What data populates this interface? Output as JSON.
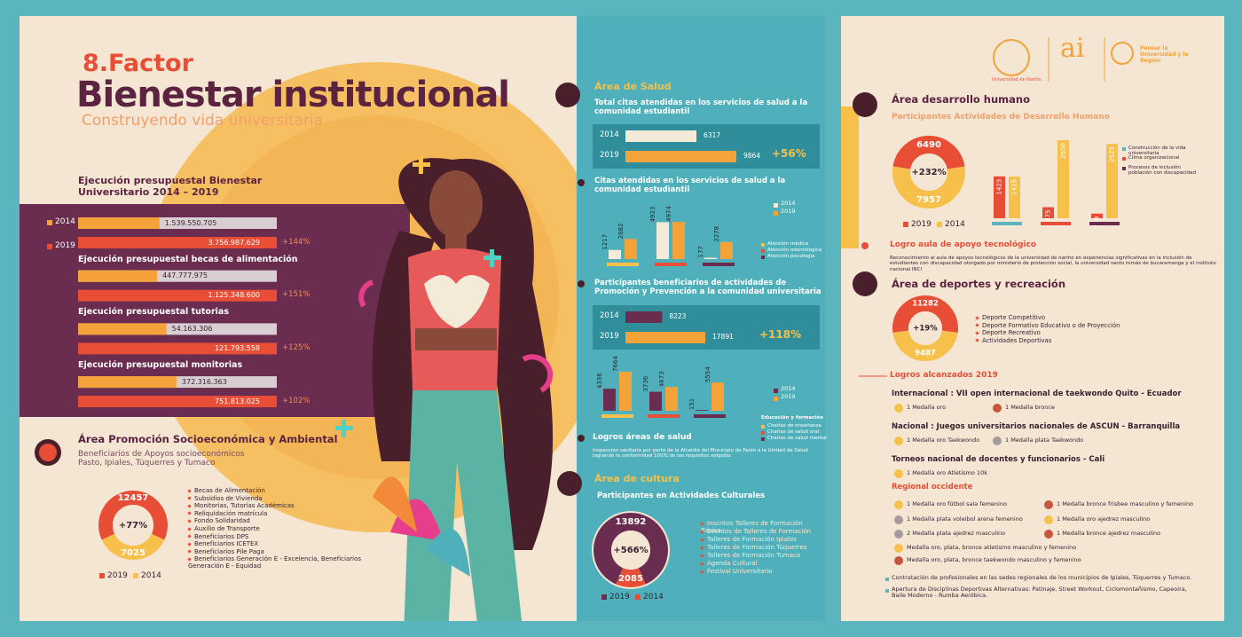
{
  "left": {
    "factor": "8.Factor",
    "title": "Bienestar institucional",
    "subtitle": "Construyendo vida universitaria",
    "budget": {
      "title": "Ejecución presupuestal Bienestar Universitario 2014 – 2019",
      "years": [
        "2014",
        "2019"
      ],
      "colors": [
        "#f4a23a",
        "#e84e36"
      ],
      "groups": [
        {
          "values": [
            1539550705,
            3756987629
          ],
          "value_labels": [
            "1.539.550.705",
            "3.756.987.629"
          ],
          "change": "+144%"
        },
        {
          "title": "Ejecución presupuestal becas de alimentación",
          "values": [
            447777975,
            1125348600
          ],
          "value_labels": [
            "447.777.975",
            "1.125.348.600"
          ],
          "change": "+151%"
        },
        {
          "title": "Ejecución presupuestal tutorias",
          "values": [
            54163306,
            121793558
          ],
          "value_labels": [
            "54.163.306",
            "121.793.558"
          ],
          "change": "+125%"
        },
        {
          "title": "Ejecución presupuestal monitorias",
          "values": [
            372316363,
            751813025
          ],
          "value_labels": [
            "372.316.363",
            "751.813.025"
          ],
          "change": "+102%"
        }
      ]
    },
    "socio": {
      "title": "Área Promoción Socioeconómica y Ambiental",
      "subtitle": "Beneficiarios de Apoyos socioeconómicos  Pasto, Ipiales, Túquerres y Tumaco",
      "donut": {
        "values": [
          12457,
          7025
        ],
        "colors": [
          "#e84e36",
          "#f6c04a"
        ],
        "change": "+77%",
        "legend": [
          "2019",
          "2014"
        ]
      },
      "items": [
        "Becas de Alimentación",
        "Subsidios de Vivienda",
        "Monitorias, Tutorías Académicas",
        "Reliquidación matrícula",
        "Fondo Solidaridad",
        "Auxilio de Transporte",
        "Beneficiarios DPS",
        "Beneficiarios ICETEX",
        "Beneficiarios Pile Paga",
        "Beneficiarios Generación E - Excelencia, Beneficiarios Generación E - Equidad"
      ]
    }
  },
  "salud": {
    "title": "Área de Salud",
    "total": {
      "title": "Total  citas atendidas en los servicios de salud a la comunidad estudiantil",
      "years": [
        "2014",
        "2019"
      ],
      "colors": [
        "#f4ead8",
        "#f4a23a"
      ],
      "values": [
        6317,
        9864
      ],
      "change": "+56%"
    },
    "citas": {
      "title": "Citas atendidas en los servicios de salud a la comunidad estudiantil",
      "categories": [
        "Atención médica",
        "Atención odontológica",
        "Atención psicología"
      ],
      "category_colors": [
        "#f6c04a",
        "#e84e36",
        "#6b2d4f"
      ],
      "series": [
        {
          "name": "2014",
          "color": "#f4ead8",
          "values": [
            1217,
            4923,
            177
          ]
        },
        {
          "name": "2019",
          "color": "#f4a23a",
          "values": [
            2682,
            4974,
            2278
          ]
        }
      ]
    },
    "promo": {
      "title": "Participantes beneficiarios de actividades de Promoción y Prevención a la comunidad universitaria",
      "years": [
        "2014",
        "2019"
      ],
      "colors": [
        "#6b2d4f",
        "#f4a23a"
      ],
      "values": [
        8223,
        17891
      ],
      "change": "+118%"
    },
    "promo_detail": {
      "legend_title": "Educación y formación",
      "categories": [
        "Charlas de enseñanza",
        "Charlas de salud oral",
        "Charlas de salud mental"
      ],
      "category_colors": [
        "#f6c04a",
        "#e84e36",
        "#6b2d4f"
      ],
      "series": [
        {
          "name": "2014",
          "color": "#6b2d4f",
          "values": [
            4336,
            3736,
            151
          ]
        },
        {
          "name": "2019",
          "color": "#f4a23a",
          "values": [
            7664,
            4673,
            5554
          ]
        }
      ]
    },
    "logros": {
      "title": "Logros áreas de salud",
      "text": "Inspección sanitaria por parte de la Alcaldía del Municipio de Pasto a la Unidad de Salud logrando la conformidad 100% de los requisitos exigidos"
    }
  },
  "cultura": {
    "title": "Área de cultura",
    "subtitle": "Participantes en Actividades Culturales",
    "donut": {
      "values": [
        13892,
        2085
      ],
      "colors": [
        "#6b2d4f",
        "#e84e36"
      ],
      "change": "+566%",
      "legend": [
        "2019",
        "2014"
      ]
    },
    "items": [
      "Inscritos Talleres de Formación Básica",
      "Eventos de Talleres de Formación",
      "Talleres de Formación Ipiales",
      "Talleres de Formación Túquerres",
      "Talleres de Formación Tumaco",
      "Agenda Cultural",
      "Festival Universitario"
    ]
  },
  "right": {
    "logos": [
      "Universidad de Nariño",
      "ai",
      "Pensar la Universidad y la Región"
    ],
    "humano": {
      "title": "Área desarrollo humano",
      "subtitle": "Participantes Actividades de Desarrollo Humano",
      "donut": {
        "values": [
          6490,
          7957
        ],
        "colors": [
          "#e84e36",
          "#f6c04a"
        ],
        "change": "+232%",
        "legend": [
          "2019",
          "2014"
        ]
      },
      "categories": [
        "Construcción de la vida universitaria",
        "Clima organizacional",
        "Procesos de inclusión población con discapacidad"
      ],
      "category_colors": [
        "#5ab5bf",
        "#e84e36",
        "#6b2d4f"
      ],
      "series": [
        {
          "name": "2019",
          "color": "#e84e36",
          "values": [
            1423,
            375,
            159
          ]
        },
        {
          "name": "2014",
          "color": "#f6c04a",
          "values": [
            1415,
            2650,
            2525
          ]
        }
      ]
    },
    "aula": {
      "title": "Logro aula de apoyo tecnológico",
      "text": "Reconocimiento al aula de apoyos tecnológicos de la universidad de nariño en experiencias significativas en la inclusión de estudiantes con discapacidad otorgado por ministerio de protección social, la universidad santo tomás de bucaramanga y el instituto nacional INCI"
    },
    "deportes": {
      "title": "Área de deportes y recreación",
      "donut": {
        "values": [
          11282,
          9487
        ],
        "colors": [
          "#e84e36",
          "#f6c04a"
        ],
        "change": "+19%"
      },
      "items": [
        "Deporte Competitivo",
        "Deporte Formativo Educativo o de Proyección",
        "Deporte Recreativo",
        "Actividades Deportivas"
      ]
    },
    "logros": {
      "title": "Logros alcanzados 2019",
      "groups": [
        {
          "title": "Internacional : VII open internacional de  taekwondo Quito - Ecuador",
          "medals": [
            "1 Medalla oro",
            "1 Medalla bronce"
          ]
        },
        {
          "title": "Nacional : Juegos universitarios nacionales de ASCUN - Barranquilla",
          "medals": [
            "1 Medalla oro Taekwondo",
            "1 Medalla plata Taekwondo"
          ]
        },
        {
          "title": "Torneos nacional de docentes y funcionarios - Cali",
          "medals": [
            "1 Medalla oro Atletismo 10k"
          ]
        }
      ],
      "regional": {
        "title": "Regional occidente",
        "left": [
          "1 Medalla oro fútbol sala femenino",
          "1 Medalla plata voleibol arena femenino",
          "2 Medalla plata ajedrez masculino",
          "Medalla oro, plata, bronce  atletismo masculino y femenino",
          "Medalla oro, plata, bronce  taekwondo masculino y femenino"
        ],
        "right": [
          "1 Medalla bronce  frisbee masculino y femenino",
          "1 Medalla oro ajedrez masculino",
          "1 Medalla bronce ajedrez masculino"
        ]
      },
      "notes": [
        "Contratación  de  profesionales en las sedes regionales de los municipios de Ipiales, Túquerres y Tumaco.",
        "Apertura de Disciplinas Deportivas Alternativas: Patinaje, Street Workout, Ciclomontañismo, Capeoira, Baile Moderno - Rumba Aeróbica."
      ]
    }
  }
}
